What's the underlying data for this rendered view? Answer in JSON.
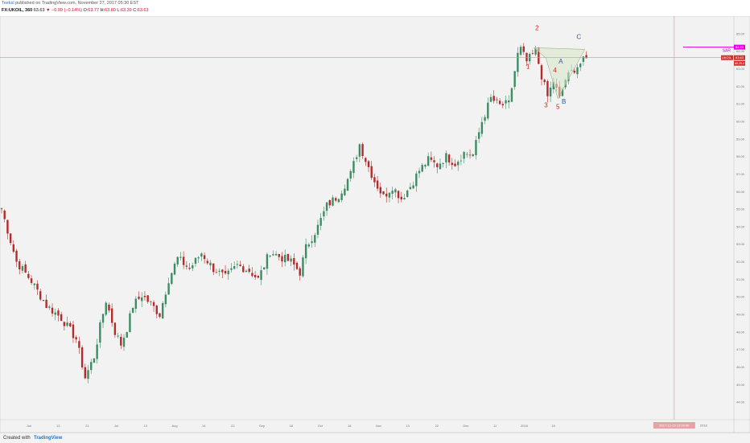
{
  "header": {
    "author": "Teeksl",
    "published": "published on TradingView.com, November 27, 2017 05:30 EST",
    "symbol": "FX:UKOIL, 360",
    "last": "63.63",
    "change": "−0.09 (−0.14%)",
    "o_label": "O:",
    "o_value": "63.77",
    "h_label": "H:",
    "h_value": "63.80",
    "l_label": "L:",
    "l_value": "63.39",
    "c_label": "C:",
    "c_value": "63.63"
  },
  "footer": {
    "created_label": "Created with",
    "brand": "TradingView"
  },
  "colors": {
    "background": "#f2f2f2",
    "up": "#3d8c64",
    "down": "#b52a2a",
    "crosshair": "#e88b8b",
    "sar": "#e000e0",
    "price_tag": "#d32f2f",
    "wave_label_red": "#c62828",
    "wave_label_blue": "#2a5caa",
    "pattern_fill": "#d7e6c8"
  },
  "chart_data": {
    "type": "candlestick",
    "title": "",
    "symbol": "FX:UKOIL",
    "interval": "360",
    "ylim": [
      43.0,
      66.0
    ],
    "y_ticks": [
      "44.00",
      "45.00",
      "46.00",
      "47.00",
      "48.00",
      "49.00",
      "50.00",
      "51.00",
      "52.00",
      "53.00",
      "54.00",
      "55.00",
      "56.00",
      "57.00",
      "58.00",
      "59.00",
      "60.00",
      "61.00",
      "62.00",
      "63.00",
      "64.00",
      "65.00"
    ],
    "x_ticks": [
      "Jun",
      "13",
      "21",
      "Jul",
      "13",
      "Aug",
      "14",
      "22",
      "Sep",
      "18",
      "Oct",
      "16",
      "Nov",
      "13",
      "22",
      "Dec",
      "11",
      "2018",
      "15"
    ],
    "price_path": [
      {
        "x": 0,
        "y": 55.0
      },
      {
        "x": 5,
        "y": 52.0
      },
      {
        "x": 10,
        "y": 50.9
      },
      {
        "x": 15,
        "y": 49.5
      },
      {
        "x": 20,
        "y": 48.8
      },
      {
        "x": 25,
        "y": 47.6
      },
      {
        "x": 28,
        "y": 45.4
      },
      {
        "x": 31,
        "y": 46.6
      },
      {
        "x": 33,
        "y": 48.3
      },
      {
        "x": 35,
        "y": 49.8
      },
      {
        "x": 38,
        "y": 48.0
      },
      {
        "x": 40,
        "y": 47.3
      },
      {
        "x": 42,
        "y": 48.2
      },
      {
        "x": 44,
        "y": 49.5
      },
      {
        "x": 47,
        "y": 50.1
      },
      {
        "x": 50,
        "y": 49.6
      },
      {
        "x": 53,
        "y": 49.0
      },
      {
        "x": 56,
        "y": 51.0
      },
      {
        "x": 59,
        "y": 52.2
      },
      {
        "x": 63,
        "y": 51.6
      },
      {
        "x": 67,
        "y": 52.5
      },
      {
        "x": 71,
        "y": 51.6
      },
      {
        "x": 75,
        "y": 51.1
      },
      {
        "x": 79,
        "y": 51.8
      },
      {
        "x": 83,
        "y": 51.5
      },
      {
        "x": 86,
        "y": 51.0
      },
      {
        "x": 90,
        "y": 52.6
      },
      {
        "x": 93,
        "y": 52.3
      },
      {
        "x": 97,
        "y": 52.0
      },
      {
        "x": 100,
        "y": 51.4
      },
      {
        "x": 102,
        "y": 52.8
      },
      {
        "x": 106,
        "y": 54.0
      },
      {
        "x": 109,
        "y": 55.2
      },
      {
        "x": 113,
        "y": 55.8
      },
      {
        "x": 117,
        "y": 57.0
      },
      {
        "x": 120,
        "y": 58.7
      },
      {
        "x": 122,
        "y": 57.8
      },
      {
        "x": 125,
        "y": 56.6
      },
      {
        "x": 128,
        "y": 55.7
      },
      {
        "x": 131,
        "y": 56.3
      },
      {
        "x": 134,
        "y": 55.6
      },
      {
        "x": 137,
        "y": 56.3
      },
      {
        "x": 140,
        "y": 57.2
      },
      {
        "x": 143,
        "y": 57.8
      },
      {
        "x": 146,
        "y": 57.5
      },
      {
        "x": 149,
        "y": 58.0
      },
      {
        "x": 152,
        "y": 57.6
      },
      {
        "x": 155,
        "y": 58.2
      },
      {
        "x": 158,
        "y": 58.1
      },
      {
        "x": 161,
        "y": 60.0
      },
      {
        "x": 164,
        "y": 61.3
      },
      {
        "x": 167,
        "y": 60.9
      },
      {
        "x": 170,
        "y": 61.0
      },
      {
        "x": 173,
        "y": 63.8
      },
      {
        "x": 174,
        "y": 64.1
      },
      {
        "x": 176,
        "y": 63.4
      },
      {
        "x": 179,
        "y": 64.0
      },
      {
        "x": 181,
        "y": 62.6
      },
      {
        "x": 183,
        "y": 61.4
      },
      {
        "x": 185,
        "y": 62.3
      },
      {
        "x": 187,
        "y": 61.3
      },
      {
        "x": 189,
        "y": 62.4
      },
      {
        "x": 192,
        "y": 63.0
      },
      {
        "x": 196,
        "y": 63.6
      }
    ],
    "last_price": "63.63",
    "last_price_label": "UKOIL",
    "sar_value": "64.23",
    "sar_label": "SAR",
    "level_label": "60.29.4",
    "date_label": "2017-12-15 12:00:00",
    "date_label_right": "2018",
    "wave_labels": [
      {
        "text": "1",
        "x": 177,
        "y": 63.0
      },
      {
        "text": "2",
        "x": 180,
        "y": 65.2
      },
      {
        "text": "3",
        "x": 183,
        "y": 60.8
      },
      {
        "text": "4",
        "x": 186,
        "y": 62.8
      },
      {
        "text": "5",
        "x": 187,
        "y": 60.7
      },
      {
        "text": "A",
        "x": 188,
        "y": 63.3
      },
      {
        "text": "B",
        "x": 189,
        "y": 61.0
      },
      {
        "text": "C",
        "x": 194,
        "y": 64.7
      }
    ],
    "pattern_points": [
      {
        "x": 179,
        "y": 64.2
      },
      {
        "x": 183,
        "y": 63.6
      },
      {
        "x": 187,
        "y": 61.3
      },
      {
        "x": 196,
        "y": 64.1
      }
    ],
    "crosshair": {
      "x": 226,
      "y": 63.63
    },
    "x_max": 246,
    "grid": false,
    "legend": "none"
  }
}
